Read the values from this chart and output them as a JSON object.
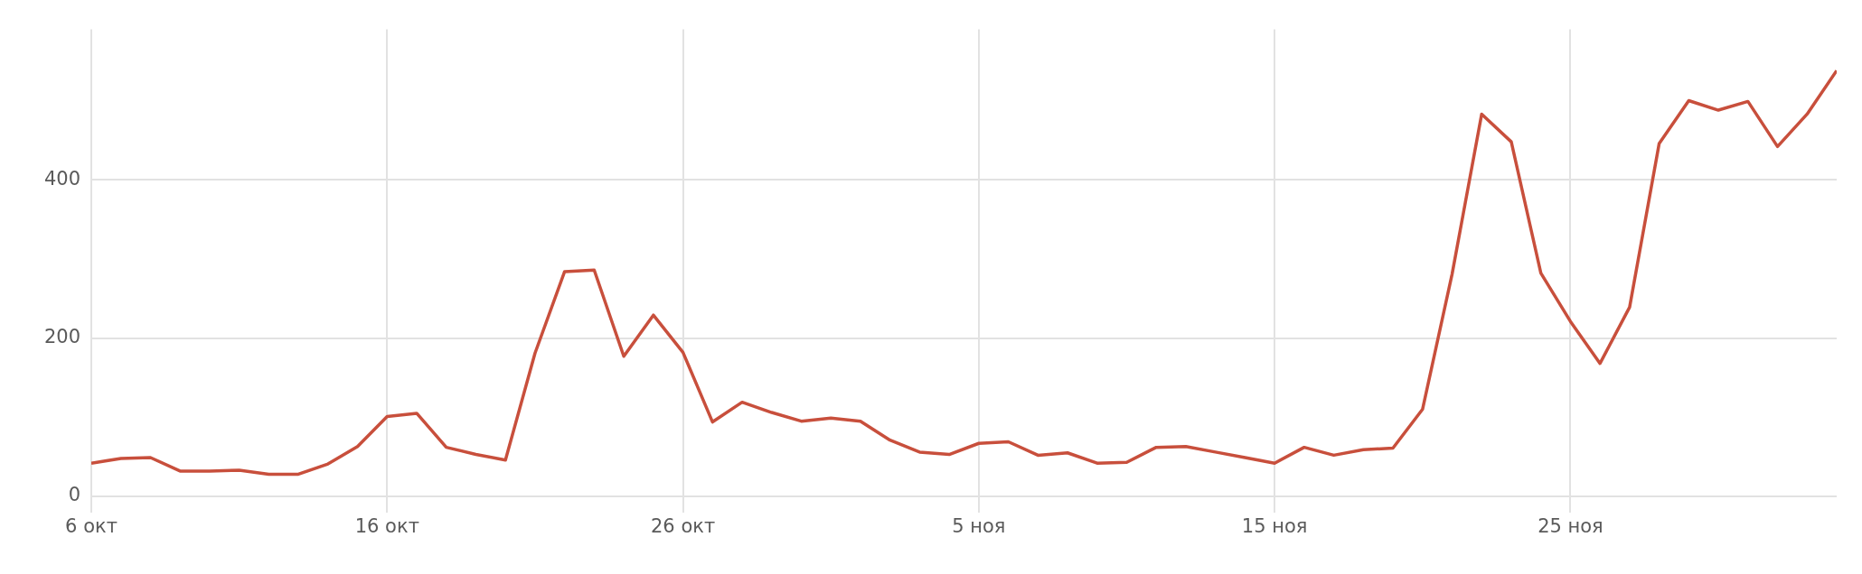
{
  "chart_data": {
    "type": "line",
    "x": [
      "--10-06",
      "--10-07",
      "--10-08",
      "--10-09",
      "--10-10",
      "--10-11",
      "--10-12",
      "--10-13",
      "--10-14",
      "--10-15",
      "--10-16",
      "--10-17",
      "--10-18",
      "--10-19",
      "--10-20",
      "--10-21",
      "--10-22",
      "--10-23",
      "--10-24",
      "--10-25",
      "--10-26",
      "--10-27",
      "--10-28",
      "--10-29",
      "--10-30",
      "--10-31",
      "--11-01",
      "--11-02",
      "--11-03",
      "--11-04",
      "--11-05",
      "--11-06",
      "--11-07",
      "--11-08",
      "--11-09",
      "--11-10",
      "--11-11",
      "--11-12",
      "--11-13",
      "--11-14",
      "--11-15",
      "--11-16",
      "--11-17",
      "--11-18",
      "--11-19",
      "--11-20",
      "--11-21",
      "--11-22",
      "--11-23",
      "--11-24",
      "--11-25",
      "--11-26",
      "--11-27",
      "--11-28",
      "--11-29",
      "--11-30",
      "--12-01",
      "--12-02",
      "--12-03",
      "--12-04"
    ],
    "series": [
      {
        "color": "#c84f3c",
        "values": [
          42,
          48,
          49,
          32,
          32,
          33,
          28,
          28,
          41,
          63,
          101,
          105,
          62,
          53,
          46,
          181,
          284,
          286,
          177,
          229,
          182,
          94,
          119,
          106,
          95,
          99,
          95,
          71,
          56,
          53,
          67,
          69,
          52,
          55,
          42,
          43,
          62,
          63,
          56,
          49,
          42,
          62,
          52,
          59,
          61,
          110,
          281,
          483,
          448,
          282,
          221,
          168,
          239,
          446,
          500,
          488,
          499,
          442,
          483,
          538
        ]
      }
    ],
    "xlim": [
      "--10-06",
      "--12-04"
    ],
    "xticks": [
      {
        "value": "--10-06",
        "label": "6 окт"
      },
      {
        "value": "--10-16",
        "label": "16 окт"
      },
      {
        "value": "--10-26",
        "label": "26 окт"
      },
      {
        "value": "--11-05",
        "label": "5 ноя"
      },
      {
        "value": "--11-15",
        "label": "15 ноя"
      },
      {
        "value": "--11-25",
        "label": "25 ноя"
      }
    ],
    "ylim": [
      0,
      590
    ],
    "yticks": [
      0,
      200,
      400
    ],
    "grid": true,
    "legend": false,
    "marker": "none",
    "line_style": "solid"
  }
}
